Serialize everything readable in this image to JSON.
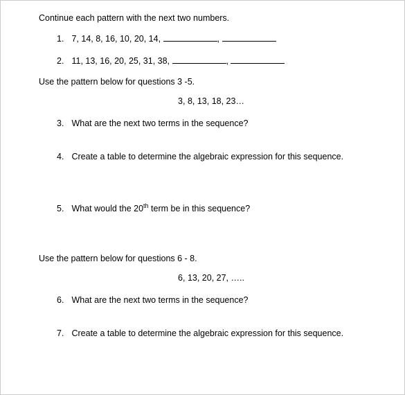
{
  "section1": {
    "instruction": "Continue each pattern with the next two numbers.",
    "q1": {
      "num": "1.",
      "seq": "7, 14, 8, 16, 10, 20, 14,"
    },
    "q2": {
      "num": "2.",
      "seq": "11, 13, 16, 20, 25, 31, 38,"
    }
  },
  "section2": {
    "instruction": "Use the pattern below for questions 3 -5.",
    "pattern": "3, 8, 13, 18, 23…",
    "q3": {
      "num": "3.",
      "text": "What are the next two terms in the sequence?"
    },
    "q4": {
      "num": "4.",
      "text": "Create a table to determine the algebraic expression for this sequence."
    },
    "q5": {
      "num": "5.",
      "pre": "What would the 20",
      "sup": "th",
      "post": " term be in this sequence?"
    }
  },
  "section3": {
    "instruction": "Use the pattern below for questions 6 - 8.",
    "pattern": "6, 13, 20, 27, …..",
    "q6": {
      "num": "6.",
      "text": "What are the next two terms in the sequence?"
    },
    "q7": {
      "num": "7.",
      "text": "Create a table to determine the algebraic expression for this sequence."
    }
  },
  "sep": ","
}
